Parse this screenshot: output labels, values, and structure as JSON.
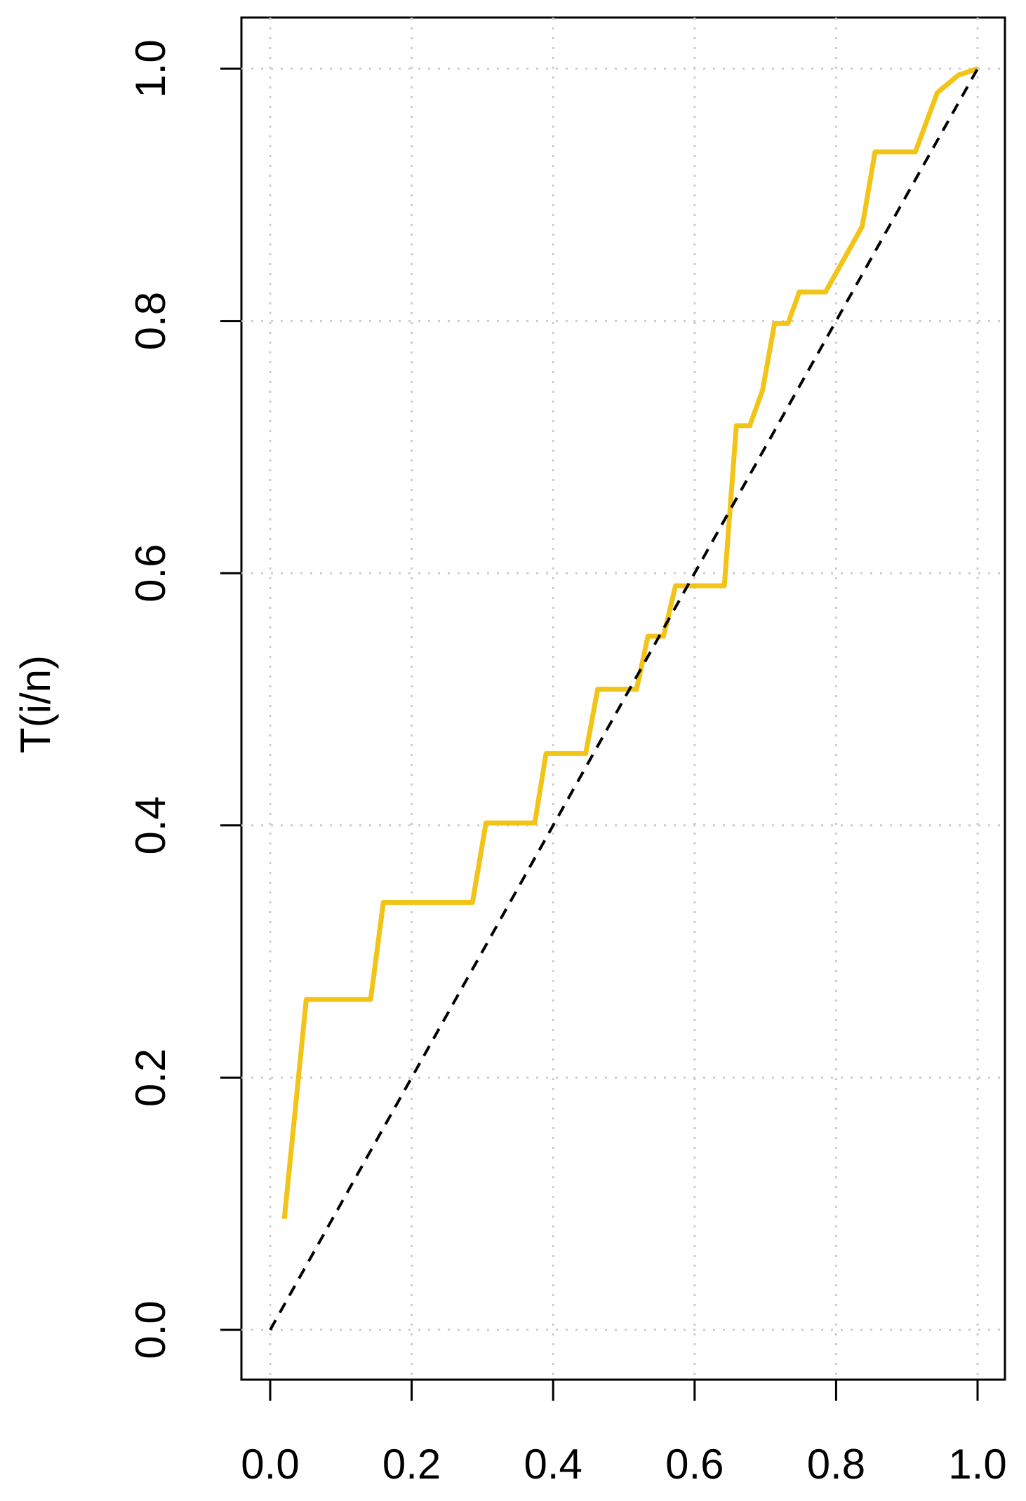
{
  "chart_data": {
    "type": "line",
    "ylabel": "T(i/n)",
    "xlim": [
      0,
      1
    ],
    "ylim": [
      0,
      1
    ],
    "xticks": [
      {
        "value": 0,
        "label": "0.0"
      },
      0.2,
      0.4,
      0.6,
      0.8,
      {
        "value": 1,
        "label": "1.0"
      }
    ],
    "yticks": [
      {
        "value": 0,
        "label": "0.0"
      },
      0.2,
      0.4,
      0.6,
      0.8,
      {
        "value": 1,
        "label": "1.0"
      }
    ],
    "grid": true,
    "series": [
      {
        "color": "#f2c417",
        "style": "solid",
        "x": [
          0.02,
          0.051,
          0.142,
          0.16,
          0.286,
          0.305,
          0.374,
          0.39,
          0.446,
          0.463,
          0.518,
          0.534,
          0.556,
          0.573,
          0.642,
          0.659,
          0.678,
          0.696,
          0.713,
          0.732,
          0.748,
          0.785,
          0.837,
          0.855,
          0.912,
          0.943,
          0.973,
          1.0
        ],
        "values": [
          0.088,
          0.262,
          0.262,
          0.339,
          0.339,
          0.402,
          0.402,
          0.457,
          0.457,
          0.508,
          0.508,
          0.55,
          0.55,
          0.59,
          0.59,
          0.717,
          0.717,
          0.745,
          0.798,
          0.798,
          0.823,
          0.823,
          0.875,
          0.934,
          0.934,
          0.981,
          0.995,
          1.0
        ]
      },
      {
        "color": "#000000",
        "style": "dashed",
        "x": [
          0,
          1
        ],
        "values": [
          0,
          1
        ]
      }
    ]
  }
}
